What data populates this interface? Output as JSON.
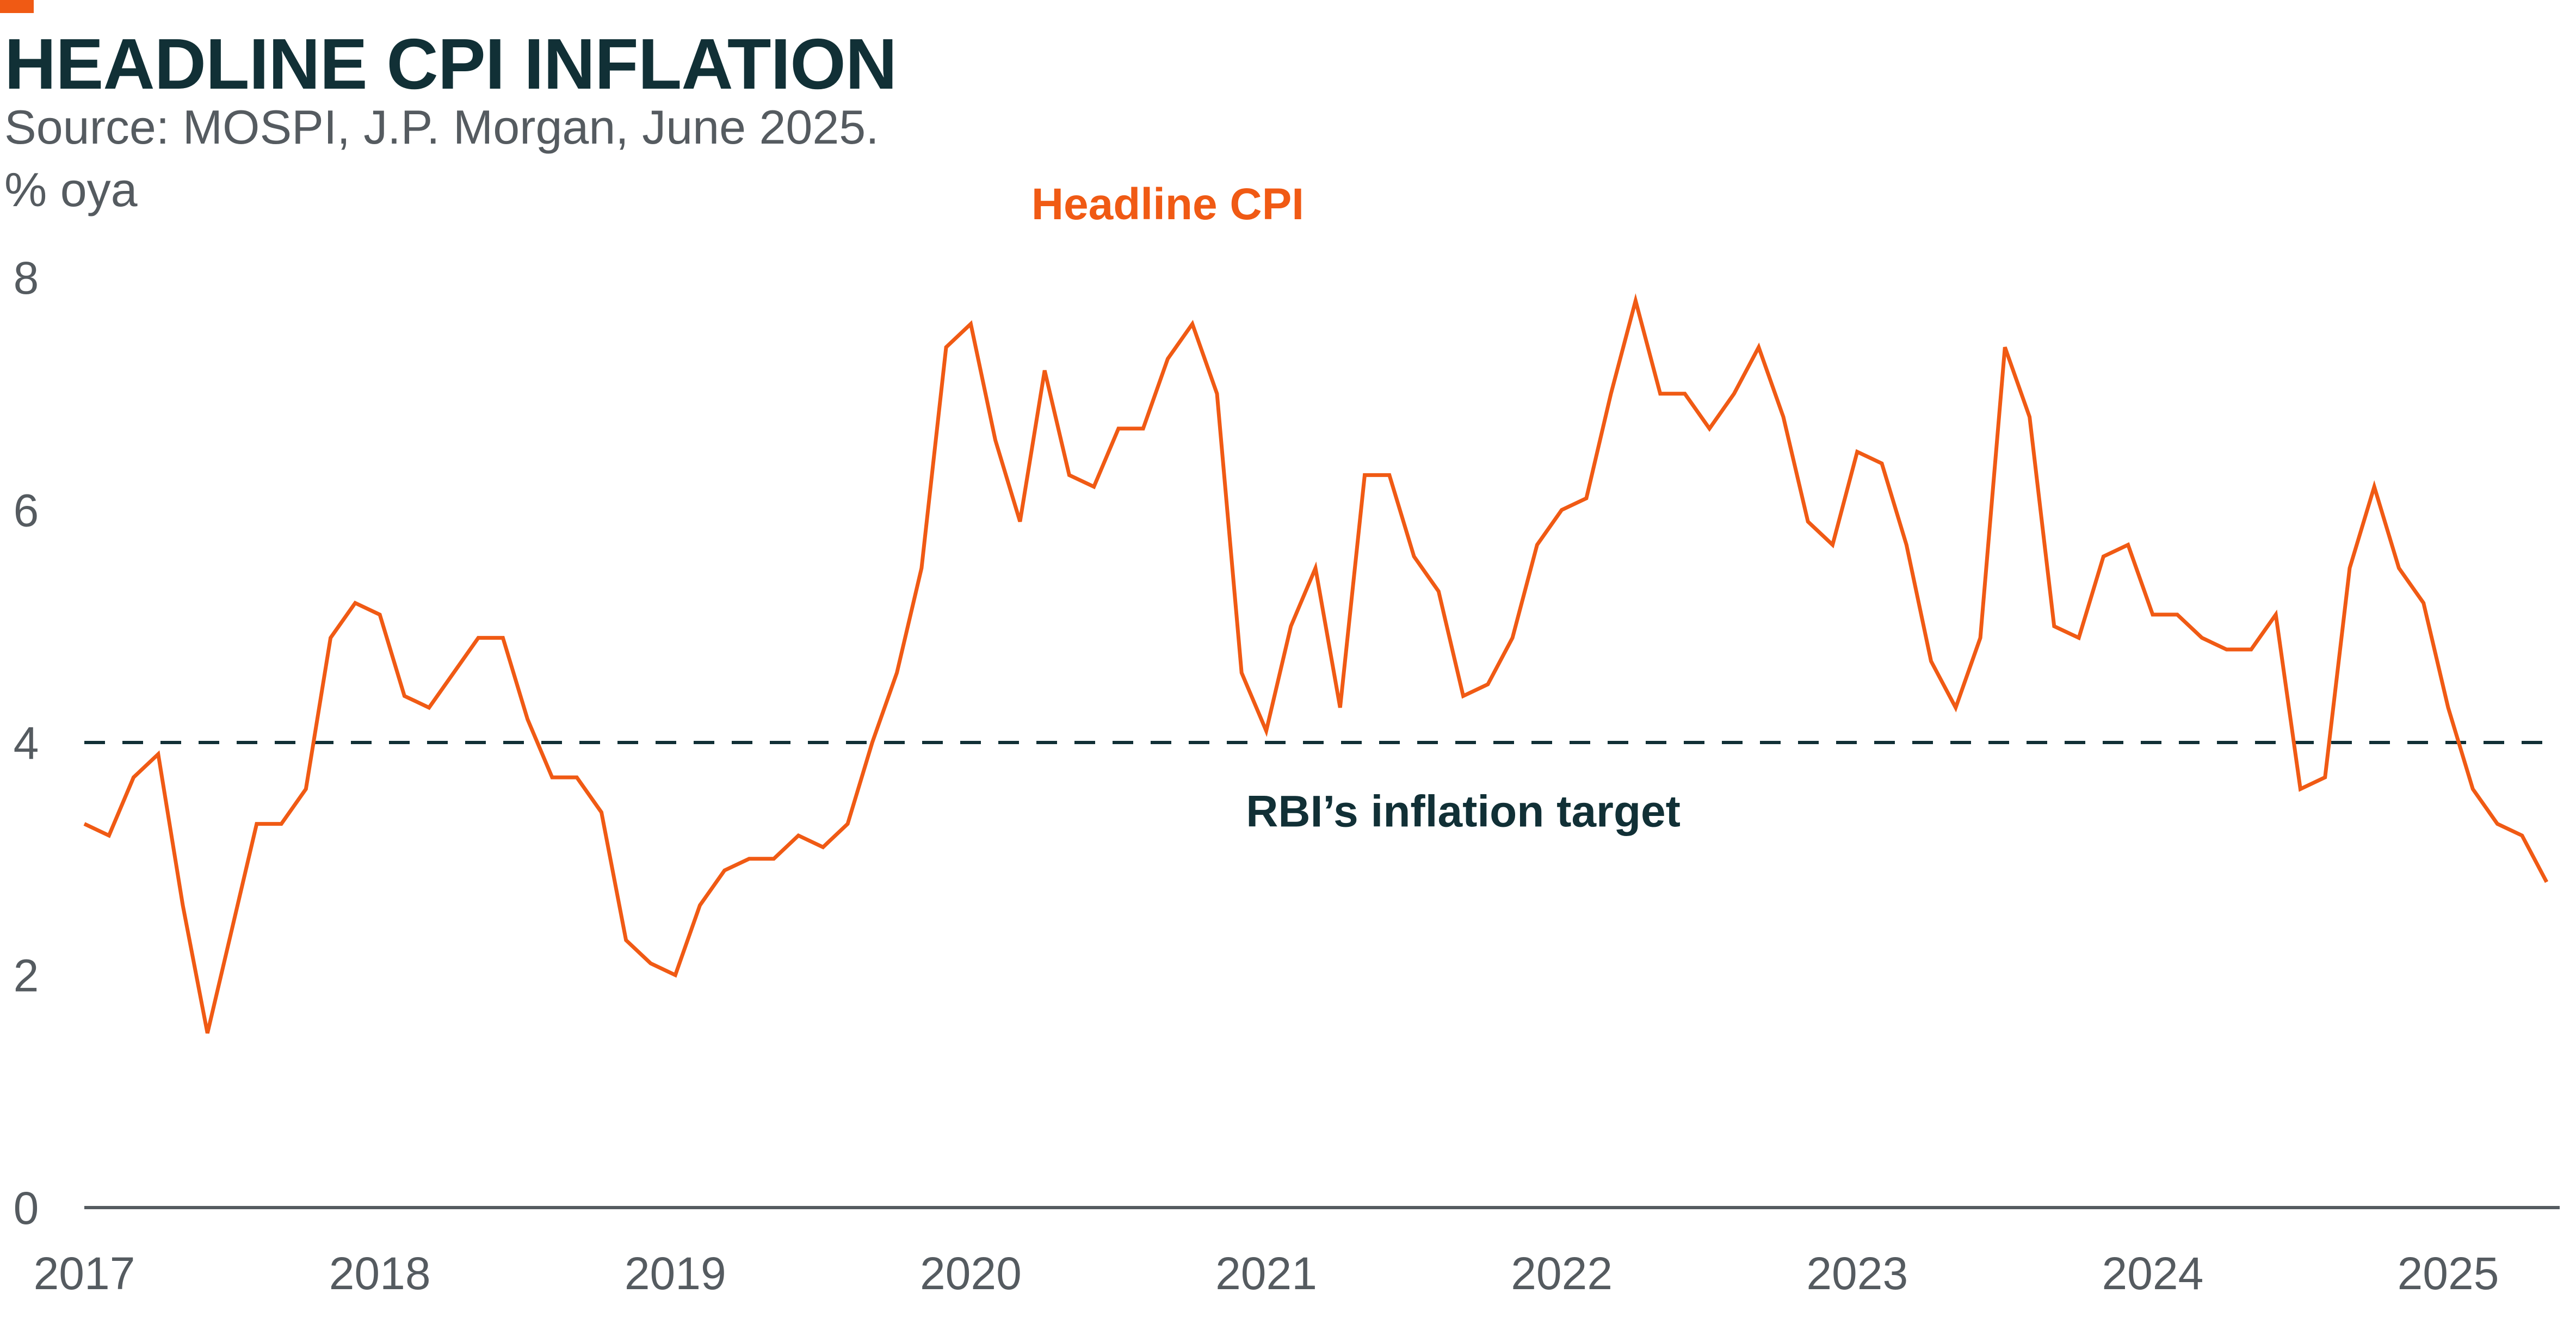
{
  "header": {
    "title": "HEADLINE CPI INFLATION",
    "source": "Source: MOSPI, J.P. Morgan, June 2025.",
    "unit": "% oya"
  },
  "colors": {
    "accent": "#f05a14",
    "series": "#f05a14",
    "title": "#113036",
    "axis_text": "#555b60",
    "reference_line": "#113036",
    "axis_line": "#555b60"
  },
  "chart_data": {
    "type": "line",
    "title": "HEADLINE CPI INFLATION",
    "subtitle": "Source: MOSPI, J.P. Morgan, June 2025.",
    "ylabel": "% oya",
    "xlabel": "",
    "ylim": [
      0,
      8
    ],
    "yticks": [
      0,
      2,
      4,
      6,
      8
    ],
    "xlim": [
      "2017-01",
      "2025-05"
    ],
    "xticks": [
      "2017",
      "2018",
      "2019",
      "2020",
      "2021",
      "2022",
      "2023",
      "2024",
      "2025"
    ],
    "grid": false,
    "series": [
      {
        "name": "Headline CPI",
        "color": "#f05a14",
        "x": [
          "2017-01",
          "2017-02",
          "2017-03",
          "2017-04",
          "2017-05",
          "2017-06",
          "2017-07",
          "2017-08",
          "2017-09",
          "2017-10",
          "2017-11",
          "2017-12",
          "2018-01",
          "2018-02",
          "2018-03",
          "2018-04",
          "2018-05",
          "2018-06",
          "2018-07",
          "2018-08",
          "2018-09",
          "2018-10",
          "2018-11",
          "2018-12",
          "2019-01",
          "2019-02",
          "2019-03",
          "2019-04",
          "2019-05",
          "2019-06",
          "2019-07",
          "2019-08",
          "2019-09",
          "2019-10",
          "2019-11",
          "2019-12",
          "2020-01",
          "2020-02",
          "2020-03",
          "2020-04",
          "2020-05",
          "2020-06",
          "2020-07",
          "2020-08",
          "2020-09",
          "2020-10",
          "2020-11",
          "2020-12",
          "2021-01",
          "2021-02",
          "2021-03",
          "2021-04",
          "2021-05",
          "2021-06",
          "2021-07",
          "2021-08",
          "2021-09",
          "2021-10",
          "2021-11",
          "2021-12",
          "2022-01",
          "2022-02",
          "2022-03",
          "2022-04",
          "2022-05",
          "2022-06",
          "2022-07",
          "2022-08",
          "2022-09",
          "2022-10",
          "2022-11",
          "2022-12",
          "2023-01",
          "2023-02",
          "2023-03",
          "2023-04",
          "2023-05",
          "2023-06",
          "2023-07",
          "2023-08",
          "2023-09",
          "2023-10",
          "2023-11",
          "2023-12",
          "2024-01",
          "2024-02",
          "2024-03",
          "2024-04",
          "2024-05",
          "2024-06",
          "2024-07",
          "2024-08",
          "2024-09",
          "2024-10",
          "2024-11",
          "2024-12",
          "2025-01",
          "2025-02",
          "2025-03",
          "2025-04",
          "2025-05"
        ],
        "y": [
          3.3,
          3.2,
          3.7,
          3.9,
          2.6,
          1.5,
          2.4,
          3.3,
          3.3,
          3.6,
          4.9,
          5.2,
          5.1,
          4.4,
          4.3,
          4.6,
          4.9,
          4.9,
          4.2,
          3.7,
          3.7,
          3.4,
          2.3,
          2.1,
          2.0,
          2.6,
          2.9,
          3.0,
          3.0,
          3.2,
          3.1,
          3.3,
          4.0,
          4.6,
          5.5,
          7.4,
          7.6,
          6.6,
          5.9,
          7.2,
          6.3,
          6.2,
          6.7,
          6.7,
          7.3,
          7.6,
          7.0,
          4.6,
          4.1,
          5.0,
          5.5,
          4.3,
          6.3,
          6.3,
          5.6,
          5.3,
          4.4,
          4.5,
          4.9,
          5.7,
          6.0,
          6.1,
          7.0,
          7.8,
          7.0,
          7.0,
          6.7,
          7.0,
          7.4,
          6.8,
          5.9,
          5.7,
          6.5,
          6.4,
          5.7,
          4.7,
          4.3,
          4.9,
          7.4,
          6.8,
          5.0,
          4.9,
          5.6,
          5.7,
          5.1,
          5.1,
          4.9,
          4.8,
          4.8,
          5.1,
          3.6,
          3.7,
          5.5,
          6.2,
          5.5,
          5.2,
          4.3,
          3.6,
          3.3,
          3.2,
          2.8
        ]
      }
    ],
    "reference_lines": [
      {
        "y": 4,
        "label": "RBI’s inflation target",
        "style": "dashed"
      }
    ],
    "annotations": [
      {
        "text": "Headline CPI",
        "x": "2020-09",
        "y": 8.5
      },
      {
        "text": "RBI’s inflation target",
        "x": "2021-09",
        "y": 3.4
      }
    ]
  }
}
